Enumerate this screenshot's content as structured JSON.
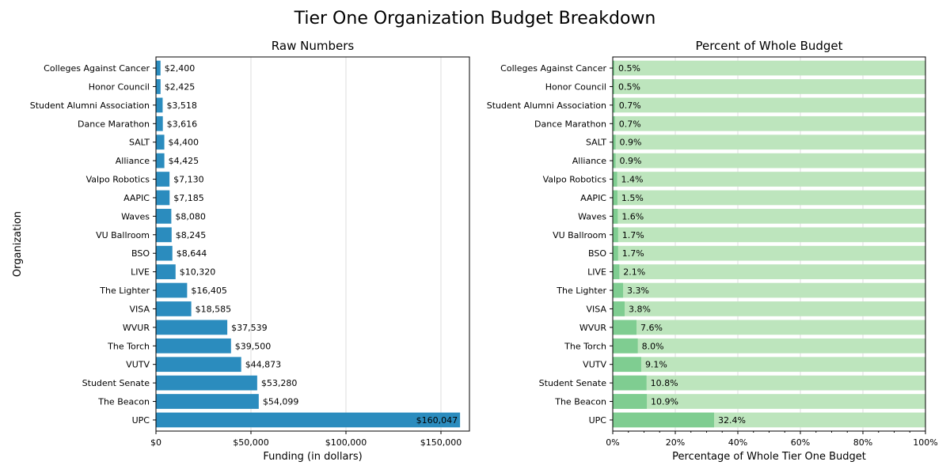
{
  "title": "Tier One Organization Budget Breakdown",
  "chart_data": [
    {
      "type": "bar",
      "orientation": "horizontal",
      "title": "Raw Numbers",
      "xlabel": "Funding (in dollars)",
      "ylabel": "Organization",
      "xlim": [
        0,
        165000
      ],
      "xticks": [
        0,
        50000,
        100000,
        150000
      ],
      "xtick_labels": [
        "$0",
        "$50,000",
        "$100,000",
        "$150,000"
      ],
      "grid": "x",
      "categories": [
        "Colleges Against Cancer",
        "Honor Council",
        "Student Alumni Association",
        "Dance Marathon",
        "SALT",
        "Alliance",
        "Valpo Robotics",
        "AAPIC",
        "Waves",
        "VU Ballroom",
        "BSO",
        "LIVE",
        "The Lighter",
        "VISA",
        "WVUR",
        "The Torch",
        "VUTV",
        "Student Senate",
        "The Beacon",
        "UPC"
      ],
      "values": [
        2400,
        2425,
        3518,
        3616,
        4400,
        4425,
        7130,
        7185,
        8080,
        8245,
        8644,
        10320,
        16405,
        18585,
        37539,
        39500,
        44873,
        53280,
        54099,
        160047
      ],
      "value_labels": [
        "$2,400",
        "$2,425",
        "$3,518",
        "$3,616",
        "$4,400",
        "$4,425",
        "$7,130",
        "$7,185",
        "$8,080",
        "$8,245",
        "$8,644",
        "$10,320",
        "$16,405",
        "$18,585",
        "$37,539",
        "$39,500",
        "$44,873",
        "$53,280",
        "$54,099",
        "$160,047"
      ],
      "color": "#2b8cbe"
    },
    {
      "type": "bar",
      "orientation": "horizontal",
      "stacked": true,
      "title": "Percent of Whole Budget",
      "xlabel": "Percentage of Whole Tier One Budget",
      "xlim": [
        0,
        100
      ],
      "xticks": [
        0,
        20,
        40,
        60,
        80,
        100
      ],
      "xtick_labels": [
        "0%",
        "20%",
        "40%",
        "60%",
        "80%",
        "100%"
      ],
      "grid": "x",
      "categories": [
        "Colleges Against Cancer",
        "Honor Council",
        "Student Alumni Association",
        "Dance Marathon",
        "SALT",
        "Alliance",
        "Valpo Robotics",
        "AAPIC",
        "Waves",
        "VU Ballroom",
        "BSO",
        "LIVE",
        "The Lighter",
        "VISA",
        "WVUR",
        "The Torch",
        "VUTV",
        "Student Senate",
        "The Beacon",
        "UPC"
      ],
      "values": [
        0.5,
        0.5,
        0.7,
        0.7,
        0.9,
        0.9,
        1.4,
        1.5,
        1.6,
        1.7,
        1.7,
        2.1,
        3.3,
        3.8,
        7.6,
        8.0,
        9.1,
        10.8,
        10.9,
        32.4
      ],
      "value_labels": [
        "0.5%",
        "0.5%",
        "0.7%",
        "0.7%",
        "0.9%",
        "0.9%",
        "1.4%",
        "1.5%",
        "1.6%",
        "1.7%",
        "1.7%",
        "2.1%",
        "3.3%",
        "3.8%",
        "7.6%",
        "8.0%",
        "9.1%",
        "10.8%",
        "10.9%",
        "32.4%"
      ],
      "color": "#7fcd91",
      "background_color": "#bde5bd"
    }
  ]
}
